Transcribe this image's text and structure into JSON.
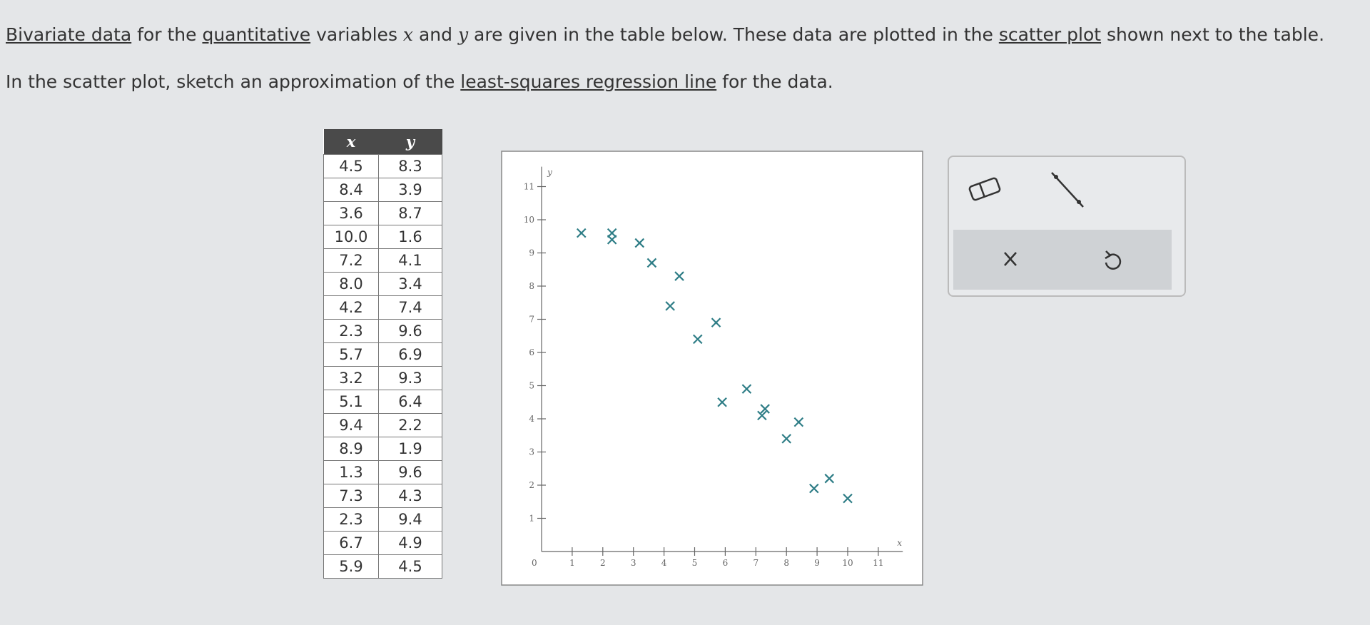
{
  "instructions": {
    "line1": [
      "Bivariate data",
      " for the ",
      "quantitative",
      " variables ",
      "x",
      " and ",
      "y",
      " are given in the table below. These data are plotted in the ",
      "scatter plot",
      " shown next to the table."
    ],
    "line2": [
      "In the scatter plot, sketch an approximation of the ",
      "least-squares regression line",
      " for the data."
    ]
  },
  "table": {
    "headers": [
      "x",
      "y"
    ]
  },
  "chart_data": {
    "type": "scatter",
    "x_label": "x",
    "y_label": "y",
    "origin_label": "0",
    "x": [
      4.5,
      8.4,
      3.6,
      10.0,
      7.2,
      8.0,
      4.2,
      2.3,
      5.7,
      3.2,
      5.1,
      9.4,
      8.9,
      1.3,
      7.3,
      2.3,
      6.7,
      5.9
    ],
    "x_labels": [
      "4.5",
      "8.4",
      "3.6",
      "10.0",
      "7.2",
      "8.0",
      "4.2",
      "2.3",
      "5.7",
      "3.2",
      "5.1",
      "9.4",
      "8.9",
      "1.3",
      "7.3",
      "2.3",
      "6.7",
      "5.9"
    ],
    "y": [
      8.3,
      3.9,
      8.7,
      1.6,
      4.1,
      3.4,
      7.4,
      9.6,
      6.9,
      9.3,
      6.4,
      2.2,
      1.9,
      9.6,
      4.3,
      9.4,
      4.9,
      4.5
    ],
    "color": "#2e7d86",
    "xlim": [
      0,
      11.8
    ],
    "ylim": [
      0,
      11.6
    ],
    "xticks": [
      1,
      2,
      3,
      4,
      5,
      6,
      7,
      8,
      9,
      10,
      11
    ],
    "yticks": [
      1,
      2,
      3,
      4,
      5,
      6,
      7,
      8,
      9,
      10,
      11
    ]
  }
}
